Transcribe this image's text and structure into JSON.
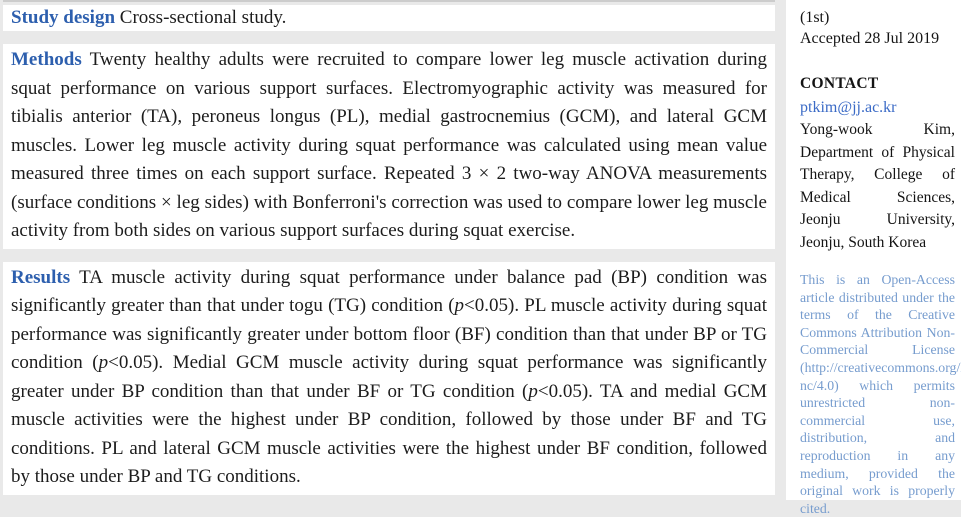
{
  "colors": {
    "page_background": "#e9e9e9",
    "block_background": "#ffffff",
    "section_lead_blue": "#2d5fae",
    "email_link_blue": "#3a6ac6",
    "license_text_blue": "#769cce",
    "body_text": "#1c1c1c"
  },
  "main": {
    "paragraphs": [
      {
        "lead": "Study design",
        "body": "Cross-sectional study."
      },
      {
        "lead": "Methods",
        "body": "Twenty healthy adults were recruited to compare lower leg muscle activation during squat performance on various support surfaces. Electromyographic activity was measured for tibialis anterior (TA), peroneus longus (PL), medial gastrocnemius (GCM), and lateral GCM muscles. Lower leg muscle activity during squat performance was calculated using mean value measured three times on each support surface. Repeated 3 × 2 two-way ANOVA measurements (surface conditions × leg sides) with Bonferroni's correction was used to compare lower leg muscle activity from both sides on various support surfaces during squat exercise."
      },
      {
        "lead": "Results",
        "segments": [
          {
            "t": "TA muscle activity during squat performance under balance pad (BP) condition was significantly greater than that under togu (TG) condition ("
          },
          {
            "t": "p",
            "i": true
          },
          {
            "t": "<0.05). PL muscle activity during squat performance was significantly greater under bottom floor (BF) condition than that under BP or TG condition ("
          },
          {
            "t": "p",
            "i": true
          },
          {
            "t": "<0.05). Medial GCM muscle activity during squat performance was significantly greater under BP condition than that under BF or TG condition ("
          },
          {
            "t": "p",
            "i": true
          },
          {
            "t": "<0.05). TA and medial GCM muscle activities were the highest under BP condition, followed by those under BF and TG conditions. PL and lateral GCM muscle activities were the highest under BF condition, followed by those under BP and TG conditions."
          }
        ]
      }
    ]
  },
  "sidebar": {
    "history": {
      "revision_note": "(1st)",
      "accepted": "Accepted 28 Jul 2019"
    },
    "contact": {
      "heading": "CONTACT",
      "email": "ptkim@jj.ac.kr",
      "address": "Yong-wook Kim, Department of Physical Therapy, College of Medical Sciences, Jeonju University, Jeonju, South Korea"
    },
    "license": "This is an Open-Access article distributed under the terms of the Creative Commons Attribution Non-Commercial License (http://creativecommons.org/licenses/by-nc/4.0) which permits unrestricted non-commercial use, distribution, and reproduction in any medium, provided the original work is properly cited."
  }
}
